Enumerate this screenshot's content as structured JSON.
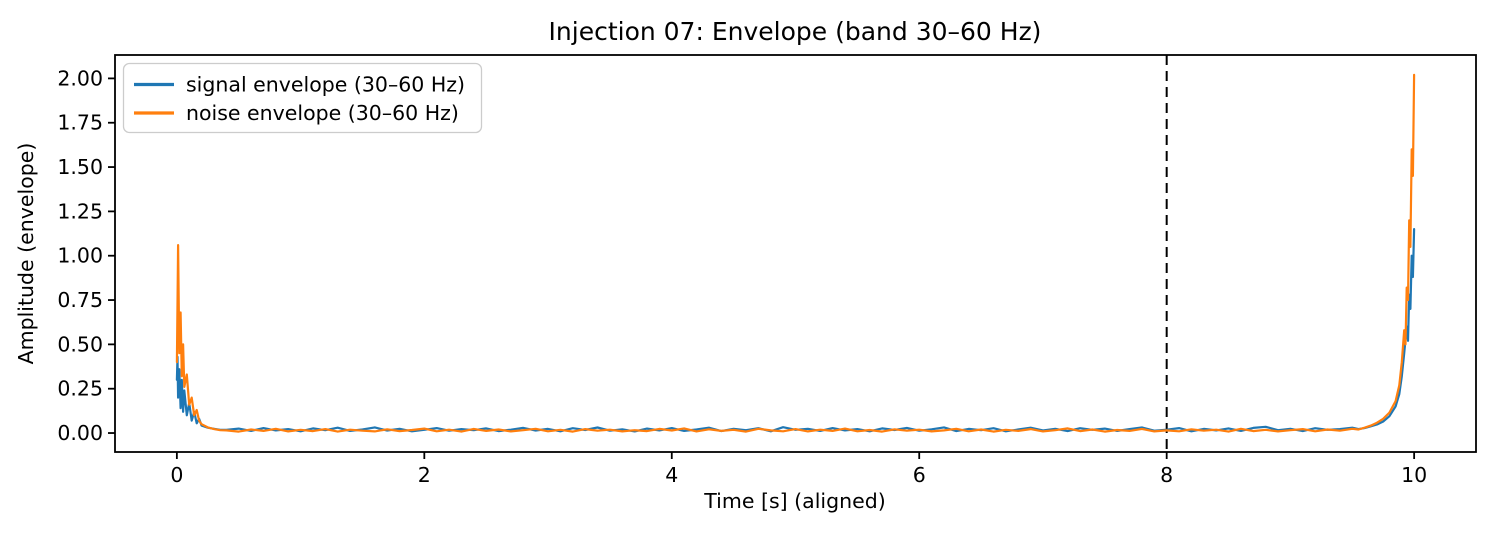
{
  "chart_data": {
    "type": "line",
    "title": "Injection 07: Envelope (band 30–60 Hz)",
    "xlabel": "Time [s] (aligned)",
    "ylabel": "Amplitude (envelope)",
    "xlim": [
      -0.5,
      10.5
    ],
    "ylim": [
      -0.107,
      2.132
    ],
    "grid": false,
    "background": "#ffffff",
    "spine_color": "#000000",
    "xticks": [
      {
        "v": 0,
        "label": "0"
      },
      {
        "v": 2,
        "label": "2"
      },
      {
        "v": 4,
        "label": "4"
      },
      {
        "v": 6,
        "label": "6"
      },
      {
        "v": 8,
        "label": "8"
      },
      {
        "v": 10,
        "label": "10"
      }
    ],
    "yticks": [
      {
        "v": 0.0,
        "label": "0.00"
      },
      {
        "v": 0.25,
        "label": "0.25"
      },
      {
        "v": 0.5,
        "label": "0.50"
      },
      {
        "v": 0.75,
        "label": "0.75"
      },
      {
        "v": 1.0,
        "label": "1.00"
      },
      {
        "v": 1.25,
        "label": "1.25"
      },
      {
        "v": 1.5,
        "label": "1.50"
      },
      {
        "v": 1.75,
        "label": "1.75"
      },
      {
        "v": 2.0,
        "label": "2.00"
      }
    ],
    "legend": {
      "position": "upper left"
    },
    "marker_line": {
      "x": 8,
      "style": "dashed",
      "color": "#000000"
    },
    "series": [
      {
        "name": "signal envelope (30–60 Hz)",
        "color": "#1f77b4",
        "points": [
          [
            0.0,
            0.3
          ],
          [
            0.005,
            0.43
          ],
          [
            0.01,
            0.2
          ],
          [
            0.02,
            0.36
          ],
          [
            0.03,
            0.14
          ],
          [
            0.04,
            0.3
          ],
          [
            0.05,
            0.12
          ],
          [
            0.06,
            0.24
          ],
          [
            0.08,
            0.1
          ],
          [
            0.1,
            0.17
          ],
          [
            0.12,
            0.07
          ],
          [
            0.14,
            0.12
          ],
          [
            0.16,
            0.055
          ],
          [
            0.18,
            0.08
          ],
          [
            0.2,
            0.042
          ],
          [
            0.25,
            0.03
          ],
          [
            0.3,
            0.024
          ],
          [
            0.35,
            0.018
          ],
          [
            0.4,
            0.018
          ],
          [
            0.5,
            0.025
          ],
          [
            0.6,
            0.012
          ],
          [
            0.7,
            0.028
          ],
          [
            0.8,
            0.015
          ],
          [
            0.9,
            0.022
          ],
          [
            1.0,
            0.01
          ],
          [
            1.1,
            0.026
          ],
          [
            1.2,
            0.016
          ],
          [
            1.3,
            0.03
          ],
          [
            1.4,
            0.012
          ],
          [
            1.5,
            0.02
          ],
          [
            1.6,
            0.032
          ],
          [
            1.7,
            0.014
          ],
          [
            1.8,
            0.024
          ],
          [
            1.9,
            0.01
          ],
          [
            2.0,
            0.018
          ],
          [
            2.1,
            0.028
          ],
          [
            2.2,
            0.013
          ],
          [
            2.3,
            0.022
          ],
          [
            2.4,
            0.016
          ],
          [
            2.5,
            0.026
          ],
          [
            2.6,
            0.011
          ],
          [
            2.7,
            0.019
          ],
          [
            2.8,
            0.029
          ],
          [
            2.9,
            0.014
          ],
          [
            3.0,
            0.023
          ],
          [
            3.1,
            0.01
          ],
          [
            3.2,
            0.027
          ],
          [
            3.3,
            0.017
          ],
          [
            3.4,
            0.031
          ],
          [
            3.5,
            0.013
          ],
          [
            3.6,
            0.021
          ],
          [
            3.7,
            0.009
          ],
          [
            3.8,
            0.025
          ],
          [
            3.9,
            0.015
          ],
          [
            4.0,
            0.028
          ],
          [
            4.1,
            0.012
          ],
          [
            4.2,
            0.02
          ],
          [
            4.3,
            0.03
          ],
          [
            4.4,
            0.011
          ],
          [
            4.5,
            0.024
          ],
          [
            4.6,
            0.016
          ],
          [
            4.7,
            0.027
          ],
          [
            4.8,
            0.01
          ],
          [
            4.9,
            0.033
          ],
          [
            5.0,
            0.018
          ],
          [
            5.1,
            0.024
          ],
          [
            5.2,
            0.012
          ],
          [
            5.3,
            0.028
          ],
          [
            5.4,
            0.015
          ],
          [
            5.5,
            0.022
          ],
          [
            5.6,
            0.01
          ],
          [
            5.7,
            0.026
          ],
          [
            5.8,
            0.017
          ],
          [
            5.9,
            0.029
          ],
          [
            6.0,
            0.013
          ],
          [
            6.1,
            0.021
          ],
          [
            6.2,
            0.032
          ],
          [
            6.3,
            0.011
          ],
          [
            6.4,
            0.023
          ],
          [
            6.5,
            0.016
          ],
          [
            6.6,
            0.027
          ],
          [
            6.7,
            0.01
          ],
          [
            6.8,
            0.02
          ],
          [
            6.9,
            0.03
          ],
          [
            7.0,
            0.014
          ],
          [
            7.1,
            0.024
          ],
          [
            7.2,
            0.011
          ],
          [
            7.3,
            0.027
          ],
          [
            7.4,
            0.018
          ],
          [
            7.5,
            0.025
          ],
          [
            7.6,
            0.012
          ],
          [
            7.7,
            0.022
          ],
          [
            7.8,
            0.031
          ],
          [
            7.9,
            0.013
          ],
          [
            8.0,
            0.019
          ],
          [
            8.1,
            0.028
          ],
          [
            8.2,
            0.01
          ],
          [
            8.3,
            0.023
          ],
          [
            8.4,
            0.015
          ],
          [
            8.5,
            0.026
          ],
          [
            8.6,
            0.012
          ],
          [
            8.7,
            0.029
          ],
          [
            8.8,
            0.035
          ],
          [
            8.9,
            0.016
          ],
          [
            9.0,
            0.024
          ],
          [
            9.1,
            0.011
          ],
          [
            9.2,
            0.027
          ],
          [
            9.3,
            0.018
          ],
          [
            9.4,
            0.022
          ],
          [
            9.5,
            0.03
          ],
          [
            9.55,
            0.022
          ],
          [
            9.6,
            0.028
          ],
          [
            9.65,
            0.038
          ],
          [
            9.7,
            0.048
          ],
          [
            9.75,
            0.065
          ],
          [
            9.8,
            0.095
          ],
          [
            9.85,
            0.15
          ],
          [
            9.88,
            0.22
          ],
          [
            9.9,
            0.32
          ],
          [
            9.92,
            0.45
          ],
          [
            9.94,
            0.6
          ],
          [
            9.95,
            0.52
          ],
          [
            9.96,
            0.78
          ],
          [
            9.97,
            0.7
          ],
          [
            9.98,
            1.0
          ],
          [
            9.99,
            0.88
          ],
          [
            10.0,
            1.15
          ]
        ]
      },
      {
        "name": "noise envelope (30–60 Hz)",
        "color": "#ff7f0e",
        "points": [
          [
            0.0,
            0.4
          ],
          [
            0.01,
            1.06
          ],
          [
            0.02,
            0.45
          ],
          [
            0.03,
            0.68
          ],
          [
            0.04,
            0.32
          ],
          [
            0.05,
            0.5
          ],
          [
            0.06,
            0.26
          ],
          [
            0.08,
            0.33
          ],
          [
            0.1,
            0.16
          ],
          [
            0.12,
            0.2
          ],
          [
            0.14,
            0.1
          ],
          [
            0.16,
            0.13
          ],
          [
            0.18,
            0.07
          ],
          [
            0.2,
            0.05
          ],
          [
            0.25,
            0.032
          ],
          [
            0.3,
            0.022
          ],
          [
            0.35,
            0.016
          ],
          [
            0.4,
            0.015
          ],
          [
            0.5,
            0.008
          ],
          [
            0.6,
            0.02
          ],
          [
            0.7,
            0.012
          ],
          [
            0.8,
            0.024
          ],
          [
            0.9,
            0.009
          ],
          [
            1.0,
            0.018
          ],
          [
            1.1,
            0.011
          ],
          [
            1.2,
            0.022
          ],
          [
            1.3,
            0.008
          ],
          [
            1.4,
            0.019
          ],
          [
            1.5,
            0.013
          ],
          [
            1.6,
            0.009
          ],
          [
            1.7,
            0.021
          ],
          [
            1.8,
            0.011
          ],
          [
            1.9,
            0.017
          ],
          [
            2.0,
            0.025
          ],
          [
            2.1,
            0.01
          ],
          [
            2.2,
            0.019
          ],
          [
            2.3,
            0.008
          ],
          [
            2.4,
            0.023
          ],
          [
            2.5,
            0.012
          ],
          [
            2.6,
            0.02
          ],
          [
            2.7,
            0.009
          ],
          [
            2.8,
            0.016
          ],
          [
            2.9,
            0.024
          ],
          [
            3.0,
            0.01
          ],
          [
            3.1,
            0.018
          ],
          [
            3.2,
            0.008
          ],
          [
            3.3,
            0.022
          ],
          [
            3.4,
            0.013
          ],
          [
            3.5,
            0.019
          ],
          [
            3.6,
            0.009
          ],
          [
            3.7,
            0.016
          ],
          [
            3.8,
            0.011
          ],
          [
            3.9,
            0.023
          ],
          [
            4.0,
            0.014
          ],
          [
            4.1,
            0.026
          ],
          [
            4.2,
            0.009
          ],
          [
            4.3,
            0.021
          ],
          [
            4.4,
            0.012
          ],
          [
            4.5,
            0.018
          ],
          [
            4.6,
            0.008
          ],
          [
            4.7,
            0.024
          ],
          [
            4.8,
            0.015
          ],
          [
            4.9,
            0.01
          ],
          [
            5.0,
            0.022
          ],
          [
            5.1,
            0.009
          ],
          [
            5.2,
            0.019
          ],
          [
            5.3,
            0.012
          ],
          [
            5.4,
            0.025
          ],
          [
            5.5,
            0.01
          ],
          [
            5.6,
            0.017
          ],
          [
            5.7,
            0.008
          ],
          [
            5.8,
            0.021
          ],
          [
            5.9,
            0.013
          ],
          [
            6.0,
            0.019
          ],
          [
            6.1,
            0.009
          ],
          [
            6.2,
            0.015
          ],
          [
            6.3,
            0.024
          ],
          [
            6.4,
            0.01
          ],
          [
            6.5,
            0.02
          ],
          [
            6.6,
            0.008
          ],
          [
            6.7,
            0.018
          ],
          [
            6.8,
            0.012
          ],
          [
            6.9,
            0.022
          ],
          [
            7.0,
            0.009
          ],
          [
            7.1,
            0.016
          ],
          [
            7.2,
            0.026
          ],
          [
            7.3,
            0.011
          ],
          [
            7.4,
            0.02
          ],
          [
            7.5,
            0.008
          ],
          [
            7.6,
            0.017
          ],
          [
            7.7,
            0.012
          ],
          [
            7.8,
            0.023
          ],
          [
            7.9,
            0.009
          ],
          [
            8.0,
            0.015
          ],
          [
            8.1,
            0.01
          ],
          [
            8.2,
            0.021
          ],
          [
            8.3,
            0.013
          ],
          [
            8.4,
            0.019
          ],
          [
            8.5,
            0.008
          ],
          [
            8.6,
            0.024
          ],
          [
            8.7,
            0.011
          ],
          [
            8.8,
            0.018
          ],
          [
            8.9,
            0.009
          ],
          [
            9.0,
            0.016
          ],
          [
            9.1,
            0.022
          ],
          [
            9.2,
            0.01
          ],
          [
            9.3,
            0.02
          ],
          [
            9.4,
            0.013
          ],
          [
            9.5,
            0.024
          ],
          [
            9.55,
            0.02
          ],
          [
            9.6,
            0.03
          ],
          [
            9.65,
            0.042
          ],
          [
            9.7,
            0.058
          ],
          [
            9.75,
            0.08
          ],
          [
            9.8,
            0.115
          ],
          [
            9.85,
            0.18
          ],
          [
            9.88,
            0.27
          ],
          [
            9.9,
            0.4
          ],
          [
            9.92,
            0.58
          ],
          [
            9.93,
            0.5
          ],
          [
            9.94,
            0.82
          ],
          [
            9.95,
            0.75
          ],
          [
            9.96,
            1.2
          ],
          [
            9.97,
            1.05
          ],
          [
            9.98,
            1.6
          ],
          [
            9.99,
            1.45
          ],
          [
            10.0,
            2.02
          ]
        ]
      }
    ]
  }
}
